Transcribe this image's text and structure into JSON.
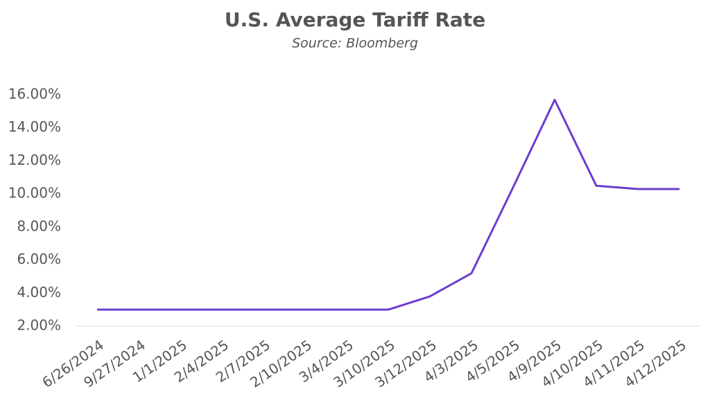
{
  "chart_data": {
    "type": "line",
    "title": "U.S. Average Tariff Rate",
    "subtitle": "Source: Bloomberg",
    "categories": [
      "6/26/2024",
      "9/27/2024",
      "1/1/2025",
      "2/4/2025",
      "2/7/2025",
      "2/10/2025",
      "3/4/2025",
      "3/10/2025",
      "3/12/2025",
      "4/3/2025",
      "4/5/2025",
      "4/9/2025",
      "4/10/2025",
      "4/11/2025",
      "4/12/2025"
    ],
    "series": [
      {
        "name": "U.S. Average Tariff Rate",
        "color": "#6c3ccf",
        "values": [
          3.0,
          3.0,
          3.0,
          3.0,
          3.0,
          3.0,
          3.0,
          3.0,
          3.8,
          5.2,
          10.4,
          15.7,
          10.5,
          10.3,
          10.3
        ]
      }
    ],
    "ylim": [
      2,
      16
    ],
    "yticks": [
      {
        "value": 2,
        "label": "2.00%"
      },
      {
        "value": 4,
        "label": "4.00%"
      },
      {
        "value": 6,
        "label": "6.00%"
      },
      {
        "value": 8,
        "label": "8.00%"
      },
      {
        "value": 10,
        "label": "10.00%"
      },
      {
        "value": 12,
        "label": "12.00%"
      },
      {
        "value": 14,
        "label": "14.00%"
      },
      {
        "value": 16,
        "label": "16.00%"
      }
    ],
    "grid": false
  }
}
